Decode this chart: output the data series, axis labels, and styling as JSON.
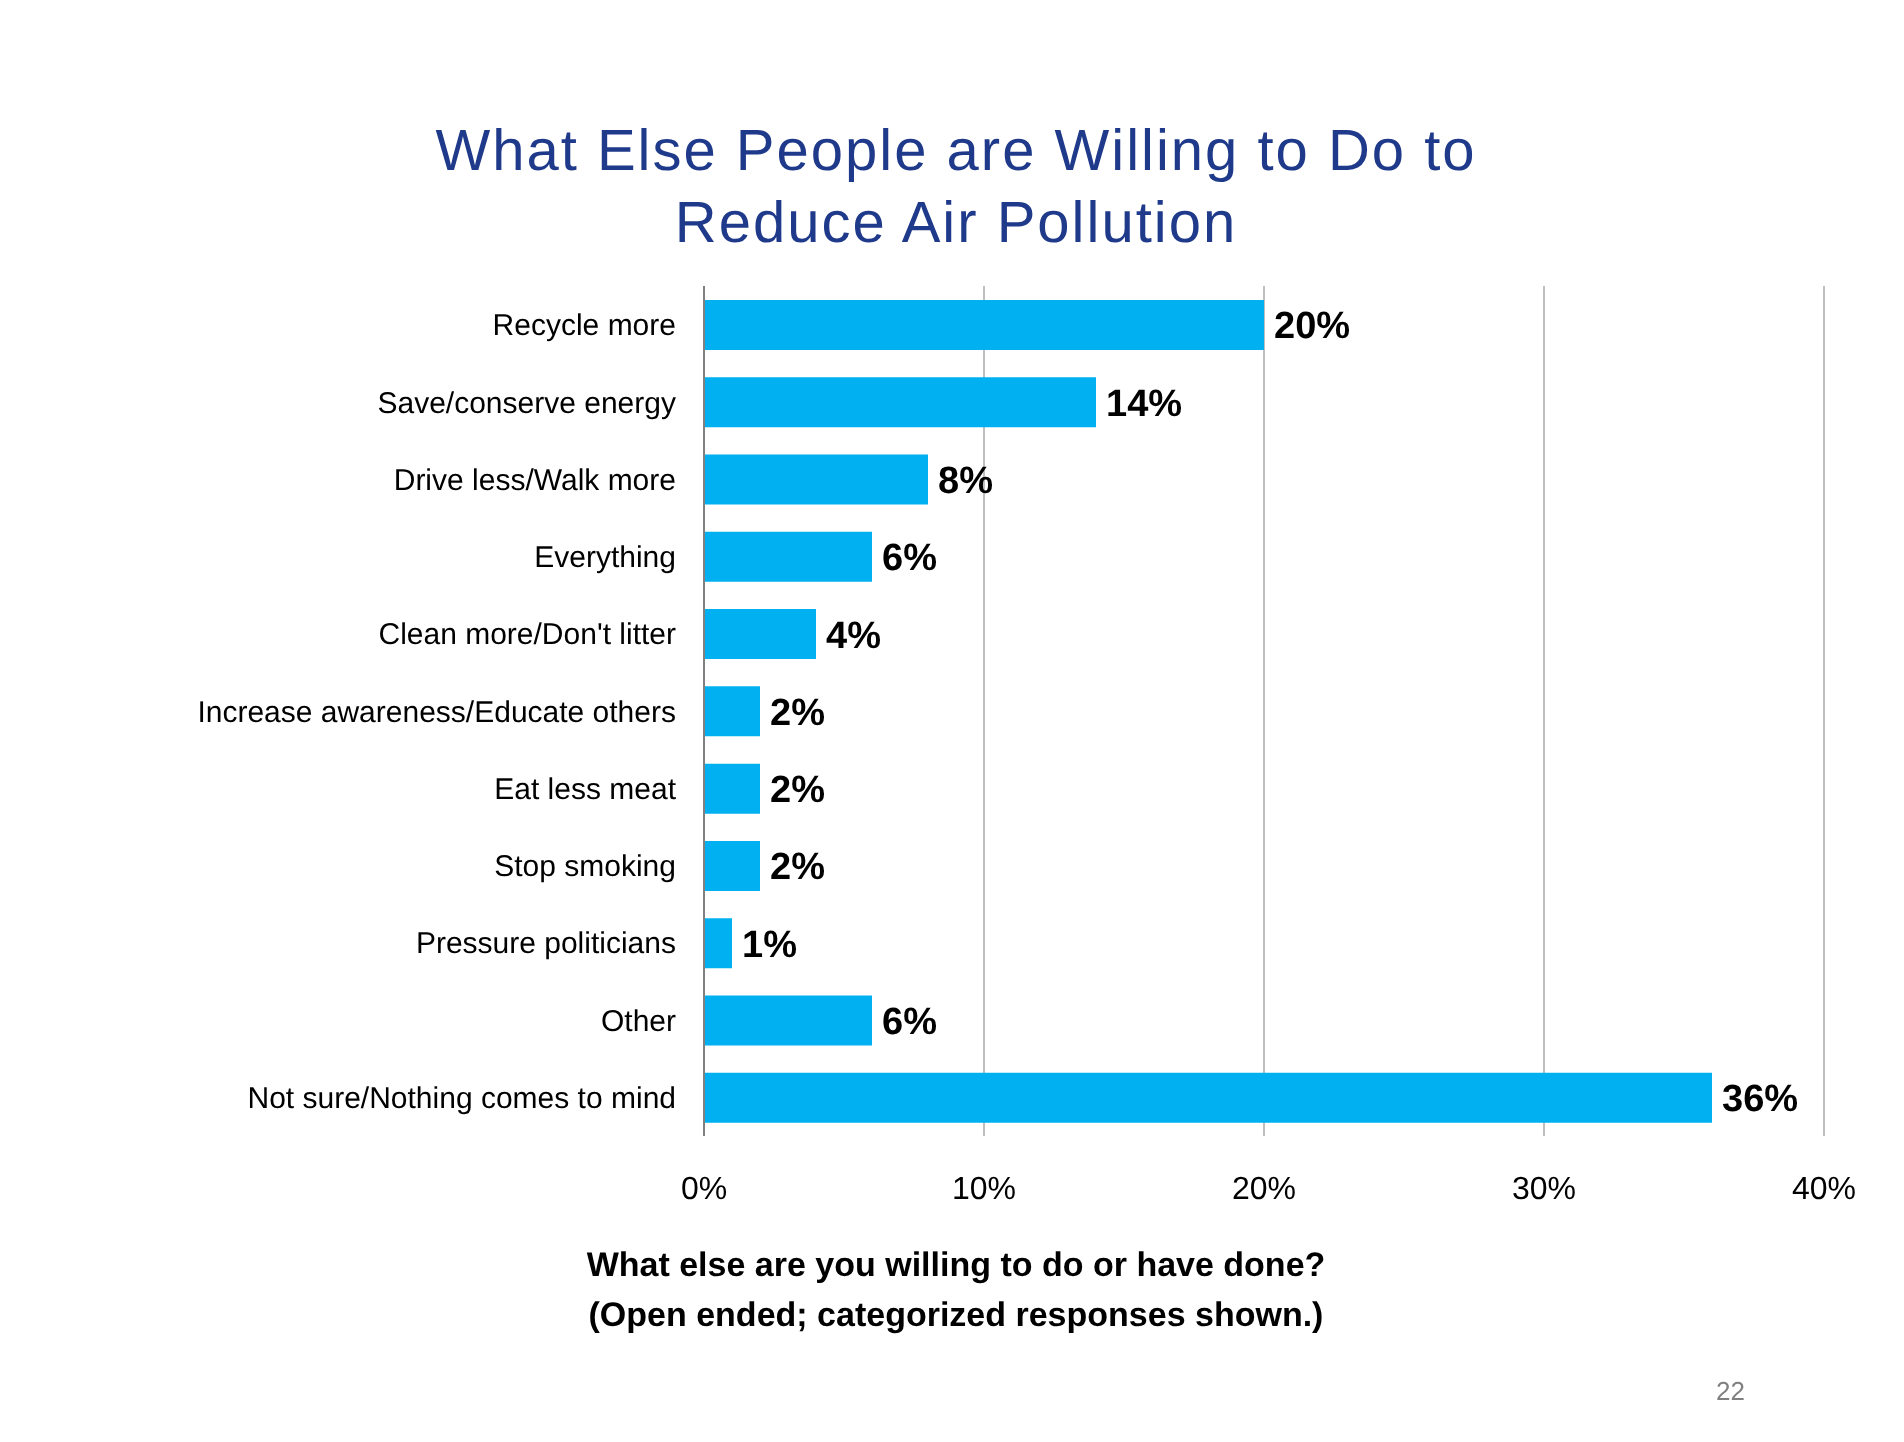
{
  "chart_data": {
    "type": "bar",
    "orientation": "horizontal",
    "title": "What Else People are Willing to Do to Reduce Air Pollution",
    "xlabel": "What else are you willing to do or have done?\n(Open ended; categorized responses shown.)",
    "categories": [
      "Recycle more",
      "Save/conserve energy",
      "Drive less/Walk more",
      "Everything",
      "Clean more/Don't litter",
      "Increase awareness/Educate others",
      "Eat less meat",
      "Stop smoking",
      "Pressure politicians",
      "Other",
      "Not sure/Nothing comes to mind"
    ],
    "values": [
      20,
      14,
      8,
      6,
      4,
      2,
      2,
      2,
      1,
      6,
      36
    ],
    "value_labels": [
      "20%",
      "14%",
      "8%",
      "6%",
      "4%",
      "2%",
      "2%",
      "2%",
      "1%",
      "6%",
      "36%"
    ],
    "color": "#00b0f0",
    "xlim": [
      0,
      40
    ],
    "xticks": [
      {
        "value": 0,
        "label": "0%"
      },
      {
        "value": 10,
        "label": "10%"
      },
      {
        "value": 20,
        "label": "20%"
      },
      {
        "value": 30,
        "label": "30%"
      },
      {
        "value": 40,
        "label": "40%"
      }
    ],
    "grid": "x",
    "annotations": [
      "22"
    ]
  }
}
